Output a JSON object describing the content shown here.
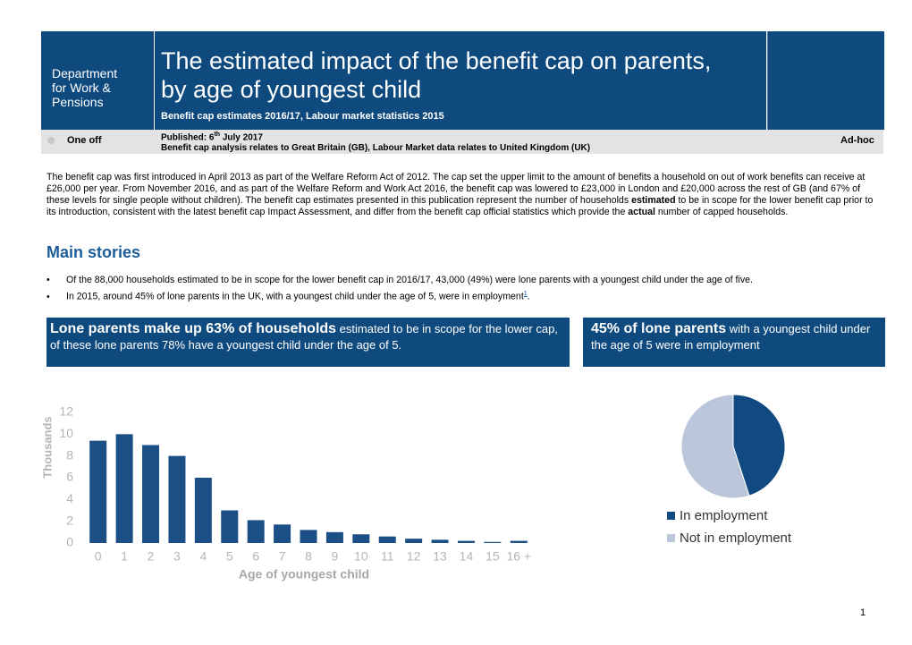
{
  "header": {
    "logo": [
      "Department",
      "for Work &",
      "Pensions"
    ],
    "title": [
      "The estimated impact of the benefit cap on parents,",
      "by age of youngest child"
    ],
    "subtitle": "Benefit cap estimates 2016/17, Labour market statistics 2015",
    "frequency": "One off",
    "published": [
      "Published: 6",
      "th",
      " July 2017"
    ],
    "coverage": "Benefit cap analysis relates to Great Britain (GB), Labour Market data relates to United Kingdom (UK)",
    "release_type": "Ad-hoc"
  },
  "intro": [
    "The benefit cap was first introduced in April 2013 as part of the Welfare Reform Act of 2012. The cap set the upper limit to the amount of benefits a household on out of work benefits can receive at £26,000 per year. From November 2016, and as part of the Welfare Reform and Work Act 2016, the benefit cap was lowered to £23,000 in London and £20,000 across the rest of GB (and 67% of these levels for single people without children). The benefit cap estimates presented in this publication represent the number of households ",
    "estimated",
    " to be in scope for the lower benefit cap prior to its introduction, consistent with the latest benefit cap Impact Assessment, and differ from the benefit cap official statistics which provide the ",
    "actual",
    " number of capped households."
  ],
  "main_stories": {
    "heading": "Main stories",
    "bullets": [
      [
        "Of the 88,000 households estimated to be in scope for the lower benefit cap in 2016/17, 43,000 (49%) were lone parents with a youngest child under the age of five."
      ],
      [
        "In 2015, around 45% of lone parents in the UK, with a youngest child under the age of 5, were in employment",
        "1",
        "."
      ]
    ]
  },
  "highlights": [
    {
      "bold": "Lone parents make up 63% of households",
      "text": " estimated to be in scope for the lower cap, of these lone parents 78% have a youngest child under the age of 5."
    },
    {
      "bold": "45% of lone parents",
      "text": " with a youngest child under the age of 5 were in employment"
    }
  ],
  "chart_data": [
    {
      "type": "bar",
      "y_label": "Thousands",
      "x_label": "Age of youngest child",
      "categories": [
        "0",
        "1",
        "2",
        "3",
        "4",
        "5",
        "6",
        "7",
        "8",
        "9",
        "10",
        "11",
        "12",
        "13",
        "14",
        "15",
        "16 +"
      ],
      "values": [
        9.4,
        10.0,
        9.0,
        8.0,
        6.0,
        3.0,
        2.1,
        1.7,
        1.2,
        1.0,
        0.8,
        0.6,
        0.4,
        0.3,
        0.2,
        0.1,
        0.2
      ],
      "color": "#1b4f86",
      "ylim": [
        0,
        12
      ],
      "yticks": [
        0,
        2,
        4,
        6,
        8,
        10,
        12
      ],
      "grid": false
    },
    {
      "type": "pie",
      "categories": [
        "In employment",
        "Not in employment"
      ],
      "values": [
        45,
        55
      ],
      "colors": [
        "#114a80",
        "#bcc6da"
      ],
      "legend": "bottom"
    }
  ],
  "page_number": "1"
}
